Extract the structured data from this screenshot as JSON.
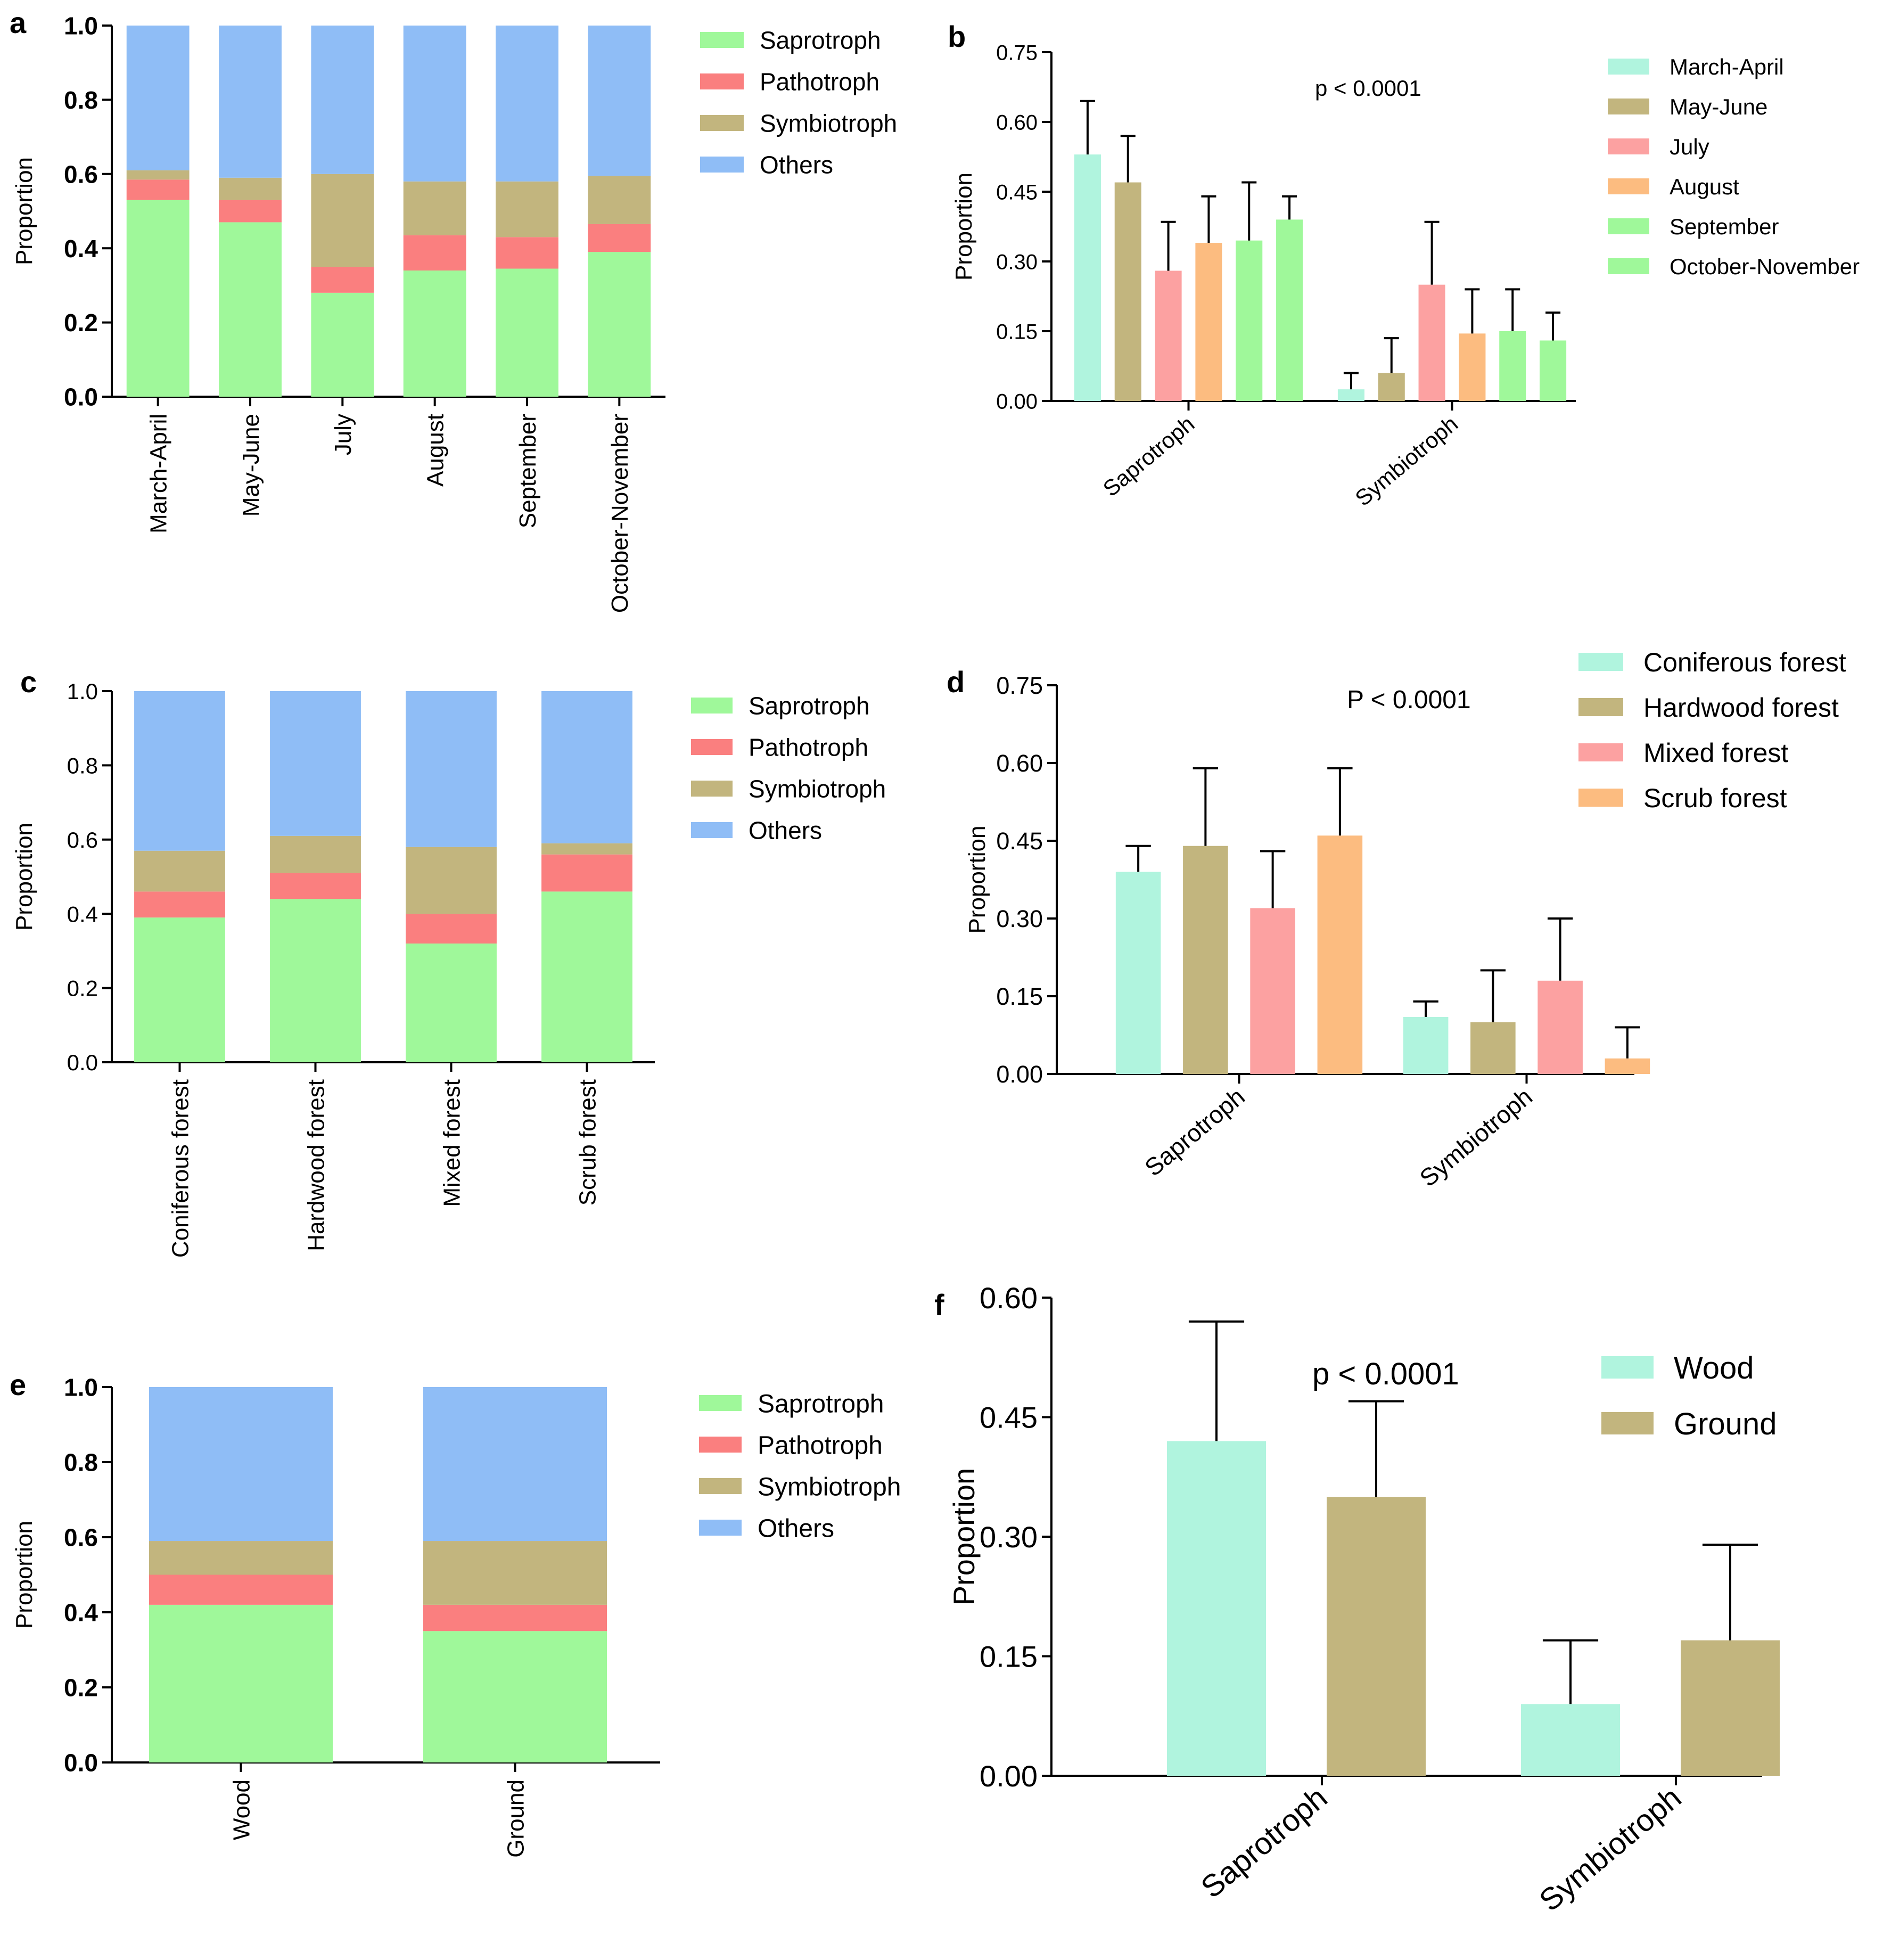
{
  "chart_data": [
    {
      "panel": "a",
      "type": "bar",
      "stacked": true,
      "categories": [
        "March-April",
        "May-June",
        "July",
        "August",
        "September",
        "October-November"
      ],
      "series": [
        {
          "name": "Saprotroph",
          "values": [
            0.53,
            0.47,
            0.28,
            0.34,
            0.345,
            0.39
          ]
        },
        {
          "name": "Pathotroph",
          "values": [
            0.055,
            0.06,
            0.07,
            0.095,
            0.085,
            0.075
          ]
        },
        {
          "name": "Symbiotroph",
          "values": [
            0.025,
            0.06,
            0.25,
            0.145,
            0.15,
            0.13
          ]
        },
        {
          "name": "Others",
          "values": [
            0.39,
            0.41,
            0.4,
            0.42,
            0.42,
            0.405
          ]
        }
      ],
      "colors": [
        "#9ff89a",
        "#fa7f7f",
        "#c2b57e",
        "#8fbdf6"
      ],
      "ylabel": "Proportion",
      "ylim": [
        0,
        1.0
      ],
      "yticks": [
        "0.0",
        "0.2",
        "0.4",
        "0.6",
        "0.8",
        "1.0"
      ],
      "bold_ticks": true,
      "legend_position": "right"
    },
    {
      "panel": "b",
      "type": "bar",
      "groups": [
        "Saprotroph",
        "Symbiotroph"
      ],
      "series": [
        {
          "name": "March-April",
          "values": [
            0.53,
            0.025
          ],
          "errors": [
            0.115,
            0.035
          ],
          "color": "#b0f4de"
        },
        {
          "name": "May-June",
          "values": [
            0.47,
            0.06
          ],
          "errors": [
            0.1,
            0.075
          ],
          "color": "#c2b57e"
        },
        {
          "name": "July",
          "values": [
            0.28,
            0.25
          ],
          "errors": [
            0.105,
            0.135
          ],
          "color": "#fca1a1"
        },
        {
          "name": "August",
          "values": [
            0.34,
            0.145
          ],
          "errors": [
            0.1,
            0.095
          ],
          "color": "#fcbc80"
        },
        {
          "name": "September",
          "values": [
            0.345,
            0.15
          ],
          "errors": [
            0.125,
            0.09
          ],
          "color": "#9ff89a"
        },
        {
          "name": "October-November",
          "values": [
            0.39,
            0.13
          ],
          "errors": [
            0.05,
            0.06
          ],
          "color": "#9ff89a"
        }
      ],
      "annotation": "p < 0.0001",
      "ylabel": "Proportion",
      "ylim": [
        0,
        0.75
      ],
      "yticks": [
        "0.00",
        "0.15",
        "0.30",
        "0.45",
        "0.60",
        "0.75"
      ],
      "legend_position": "right"
    },
    {
      "panel": "c",
      "type": "bar",
      "stacked": true,
      "categories": [
        "Coniferous forest",
        "Hardwood forest",
        "Mixed forest",
        "Scrub forest"
      ],
      "series": [
        {
          "name": "Saprotroph",
          "values": [
            0.39,
            0.44,
            0.32,
            0.46
          ]
        },
        {
          "name": "Pathotroph",
          "values": [
            0.07,
            0.07,
            0.08,
            0.1
          ]
        },
        {
          "name": "Symbiotroph",
          "values": [
            0.11,
            0.1,
            0.18,
            0.03
          ]
        },
        {
          "name": "Others",
          "values": [
            0.43,
            0.39,
            0.42,
            0.41
          ]
        }
      ],
      "colors": [
        "#9ff89a",
        "#fa7f7f",
        "#c2b57e",
        "#8fbdf6"
      ],
      "ylabel": "Proportion",
      "ylim": [
        0,
        1.0
      ],
      "yticks": [
        "0.0",
        "0.2",
        "0.4",
        "0.6",
        "0.8",
        "1.0"
      ],
      "bold_ticks": false,
      "legend_position": "right"
    },
    {
      "panel": "d",
      "type": "bar",
      "groups": [
        "Saprotroph",
        "Symbiotroph"
      ],
      "series": [
        {
          "name": "Coniferous forest",
          "values": [
            0.39,
            0.11
          ],
          "errors": [
            0.05,
            0.03
          ],
          "color": "#b0f4de"
        },
        {
          "name": "Hardwood forest",
          "values": [
            0.44,
            0.1
          ],
          "errors": [
            0.15,
            0.1
          ],
          "color": "#c2b57e"
        },
        {
          "name": "Mixed forest",
          "values": [
            0.32,
            0.18
          ],
          "errors": [
            0.11,
            0.12
          ],
          "color": "#fca1a1"
        },
        {
          "name": "Scrub forest",
          "values": [
            0.46,
            0.03
          ],
          "errors": [
            0.13,
            0.06
          ],
          "color": "#fcbc80"
        }
      ],
      "annotation": "P < 0.0001",
      "ylabel": "Proportion",
      "ylim": [
        0,
        0.75
      ],
      "yticks": [
        "0.00",
        "0.15",
        "0.30",
        "0.45",
        "0.60",
        "0.75"
      ],
      "legend_position": "right"
    },
    {
      "panel": "e",
      "type": "bar",
      "stacked": true,
      "categories": [
        "Wood",
        "Ground"
      ],
      "series": [
        {
          "name": "Saprotroph",
          "values": [
            0.42,
            0.35
          ]
        },
        {
          "name": "Pathotroph",
          "values": [
            0.08,
            0.07
          ]
        },
        {
          "name": "Symbiotroph",
          "values": [
            0.09,
            0.17
          ]
        },
        {
          "name": "Others",
          "values": [
            0.41,
            0.41
          ]
        }
      ],
      "colors": [
        "#9ff89a",
        "#fa7f7f",
        "#c2b57e",
        "#8fbdf6"
      ],
      "ylabel": "Proportion",
      "ylim": [
        0,
        1.0
      ],
      "yticks": [
        "0.0",
        "0.2",
        "0.4",
        "0.6",
        "0.8",
        "1.0"
      ],
      "bold_ticks": true,
      "legend_position": "right"
    },
    {
      "panel": "f",
      "type": "bar",
      "groups": [
        "Saprotroph",
        "Symbiotroph"
      ],
      "series": [
        {
          "name": "Wood",
          "values": [
            0.42,
            0.09
          ],
          "errors": [
            0.15,
            0.08
          ],
          "color": "#b0f4de"
        },
        {
          "name": "Ground",
          "values": [
            0.35,
            0.17
          ],
          "errors": [
            0.12,
            0.12
          ],
          "color": "#c2b57e"
        }
      ],
      "annotation": "p < 0.0001",
      "ylabel": "Proportion",
      "ylim": [
        0,
        0.6
      ],
      "yticks": [
        "0.00",
        "0.15",
        "0.30",
        "0.45",
        "0.60"
      ],
      "legend_position": "right"
    }
  ]
}
